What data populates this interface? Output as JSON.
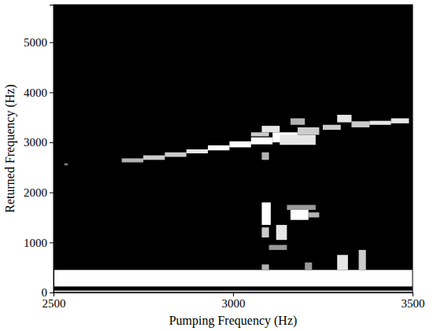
{
  "chart_data": {
    "type": "heatmap",
    "x_label": "Pumping Frequency (Hz)",
    "y_label": "Returned Frequency (Hz)",
    "xlim": [
      2500,
      3500
    ],
    "xticks": [
      2500,
      3000,
      3500
    ],
    "ylim": [
      0,
      5750
    ],
    "yticks": [
      0,
      1000,
      2000,
      3000,
      4000,
      5000
    ],
    "cells": [
      {
        "x0": 2500,
        "x1": 3500,
        "y0": 120,
        "y1": 450,
        "value": 1
      },
      {
        "x0": 2500,
        "x1": 3500,
        "y0": 0,
        "y1": 40,
        "value": 0.8
      },
      {
        "x0": 3290,
        "x1": 3320,
        "y0": 450,
        "y1": 750,
        "value": 0.9
      },
      {
        "x0": 3350,
        "x1": 3370,
        "y0": 450,
        "y1": 850,
        "value": 0.8
      },
      {
        "x0": 3080,
        "x1": 3100,
        "y0": 450,
        "y1": 560,
        "value": 0.7
      },
      {
        "x0": 3200,
        "x1": 3220,
        "y0": 450,
        "y1": 600,
        "value": 0.6
      },
      {
        "x0": 2530,
        "x1": 2540,
        "y0": 2540,
        "y1": 2580,
        "value": 0.5
      },
      {
        "x0": 2690,
        "x1": 2750,
        "y0": 2600,
        "y1": 2680,
        "value": 0.7
      },
      {
        "x0": 2750,
        "x1": 2810,
        "y0": 2650,
        "y1": 2740,
        "value": 0.8
      },
      {
        "x0": 2810,
        "x1": 2870,
        "y0": 2710,
        "y1": 2800,
        "value": 0.8
      },
      {
        "x0": 2870,
        "x1": 2930,
        "y0": 2780,
        "y1": 2860,
        "value": 0.9
      },
      {
        "x0": 2930,
        "x1": 2990,
        "y0": 2840,
        "y1": 2940,
        "value": 1
      },
      {
        "x0": 2990,
        "x1": 3050,
        "y0": 2900,
        "y1": 3020,
        "value": 1
      },
      {
        "x0": 3050,
        "x1": 3110,
        "y0": 2960,
        "y1": 3100,
        "value": 1
      },
      {
        "x0": 3050,
        "x1": 3100,
        "y0": 3120,
        "y1": 3200,
        "value": 0.8
      },
      {
        "x0": 3080,
        "x1": 3130,
        "y0": 3200,
        "y1": 3330,
        "value": 0.9
      },
      {
        "x0": 3110,
        "x1": 3180,
        "y0": 3000,
        "y1": 3200,
        "value": 1
      },
      {
        "x0": 3130,
        "x1": 3230,
        "y0": 2950,
        "y1": 3150,
        "value": 0.9
      },
      {
        "x0": 3180,
        "x1": 3240,
        "y0": 3150,
        "y1": 3300,
        "value": 0.8
      },
      {
        "x0": 3160,
        "x1": 3200,
        "y0": 3350,
        "y1": 3480,
        "value": 0.7
      },
      {
        "x0": 3080,
        "x1": 3100,
        "y0": 2650,
        "y1": 2800,
        "value": 0.7
      },
      {
        "x0": 3250,
        "x1": 3300,
        "y0": 3250,
        "y1": 3350,
        "value": 0.8
      },
      {
        "x0": 3290,
        "x1": 3330,
        "y0": 3400,
        "y1": 3550,
        "value": 0.9
      },
      {
        "x0": 3330,
        "x1": 3380,
        "y0": 3300,
        "y1": 3420,
        "value": 0.8
      },
      {
        "x0": 3380,
        "x1": 3440,
        "y0": 3350,
        "y1": 3430,
        "value": 0.9
      },
      {
        "x0": 3440,
        "x1": 3490,
        "y0": 3380,
        "y1": 3480,
        "value": 0.9
      },
      {
        "x0": 3080,
        "x1": 3105,
        "y0": 1350,
        "y1": 1800,
        "value": 1
      },
      {
        "x0": 3080,
        "x1": 3100,
        "y0": 1100,
        "y1": 1300,
        "value": 0.8
      },
      {
        "x0": 3120,
        "x1": 3150,
        "y0": 1050,
        "y1": 1350,
        "value": 0.9
      },
      {
        "x0": 3160,
        "x1": 3210,
        "y0": 1450,
        "y1": 1700,
        "value": 1
      },
      {
        "x0": 3210,
        "x1": 3240,
        "y0": 1500,
        "y1": 1600,
        "value": 0.7
      },
      {
        "x0": 3100,
        "x1": 3150,
        "y0": 850,
        "y1": 950,
        "value": 0.6
      },
      {
        "x0": 3150,
        "x1": 3230,
        "y0": 1650,
        "y1": 1750,
        "value": 0.6
      }
    ]
  }
}
